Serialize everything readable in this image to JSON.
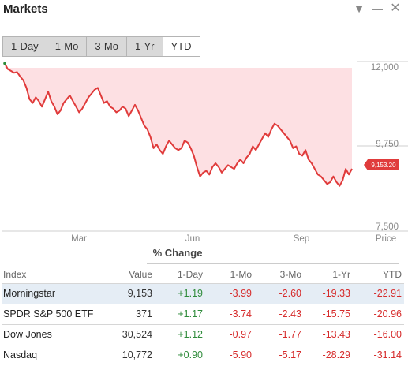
{
  "header": {
    "title": "Markets",
    "icons": [
      "triangle-down-icon",
      "minimize-icon",
      "close-icon"
    ]
  },
  "tabs": [
    {
      "label": "1-Day",
      "active": false
    },
    {
      "label": "1-Mo",
      "active": false
    },
    {
      "label": "3-Mo",
      "active": false
    },
    {
      "label": "1-Yr",
      "active": false
    },
    {
      "label": "YTD",
      "active": true
    }
  ],
  "chart_data": {
    "type": "area",
    "xticks": [
      "Mar",
      "Jun",
      "Sep"
    ],
    "yticks": [
      "12,000",
      "9,750",
      "7,500"
    ],
    "yaxis_label": "Price",
    "ylim": [
      7500,
      12000
    ],
    "last_value_label": "9,153.20",
    "line_color": "#e03b3b",
    "fill_color": "#fde0e3",
    "series": [
      {
        "values": [
          11950,
          11800,
          11750,
          11700,
          11720,
          11600,
          11500,
          11300,
          11000,
          10900,
          11050,
          10950,
          10800,
          11000,
          11200,
          10950,
          10800,
          10600,
          10700,
          10900,
          11000,
          11100,
          10950,
          10800,
          10650,
          10750,
          10900,
          11050,
          11150,
          11250,
          11300,
          11100,
          10900,
          10950,
          10800,
          10750,
          10650,
          10700,
          10800,
          10750,
          10550,
          10700,
          10850,
          10700,
          10500,
          10300,
          10200,
          10000,
          9700,
          9800,
          9650,
          9550,
          9750,
          9900,
          9800,
          9700,
          9650,
          9700,
          9900,
          9850,
          9700,
          9500,
          9200,
          8950,
          9050,
          9100,
          9000,
          9200,
          9300,
          9200,
          9050,
          9150,
          9250,
          9200,
          9150,
          9300,
          9400,
          9300,
          9450,
          9550,
          9750,
          9650,
          9800,
          9950,
          10100,
          10000,
          10200,
          10350,
          10300,
          10200,
          10100,
          10000,
          9900,
          9700,
          9750,
          9550,
          9500,
          9650,
          9400,
          9300,
          9150,
          9000,
          8950,
          8850,
          8750,
          8800,
          8950,
          8800,
          8700,
          8850,
          9150,
          9000,
          9153
        ]
      }
    ]
  },
  "table": {
    "section_title": "% Change",
    "columns": [
      "Index",
      "Value",
      "1-Day",
      "1-Mo",
      "3-Mo",
      "1-Yr",
      "YTD"
    ],
    "rows": [
      {
        "name": "Morningstar",
        "value": "9,153",
        "day": "+1.19",
        "mo1": "-3.99",
        "mo3": "-2.60",
        "yr1": "-19.33",
        "ytd": "-22.91",
        "selected": true
      },
      {
        "name": "SPDR S&P 500 ETF",
        "value": "371",
        "day": "+1.17",
        "mo1": "-3.74",
        "mo3": "-2.43",
        "yr1": "-15.75",
        "ytd": "-20.96",
        "selected": false
      },
      {
        "name": "Dow Jones",
        "value": "30,524",
        "day": "+1.12",
        "mo1": "-0.97",
        "mo3": "-1.77",
        "yr1": "-13.43",
        "ytd": "-16.00",
        "selected": false
      },
      {
        "name": "Nasdaq",
        "value": "10,772",
        "day": "+0.90",
        "mo1": "-5.90",
        "mo3": "-5.17",
        "yr1": "-28.29",
        "ytd": "-31.14",
        "selected": false
      }
    ],
    "colors": {
      "positive": "#2e8b3a",
      "negative": "#d62b2b"
    }
  }
}
